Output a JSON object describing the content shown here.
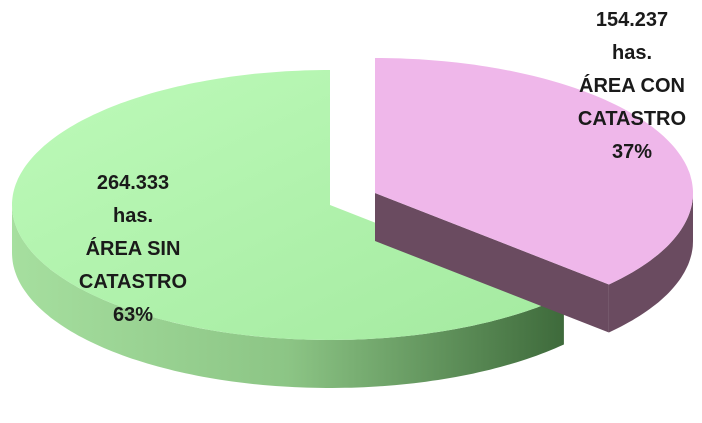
{
  "chart_data": {
    "type": "pie3d",
    "categories": [
      "ÁREA CON CATASTRO",
      "ÁREA SIN CATASTRO"
    ],
    "values": [
      154237,
      264333
    ],
    "value_labels": [
      "154.237",
      "264.333"
    ],
    "unit": "has.",
    "percentages": [
      37,
      63
    ],
    "percentage_labels": [
      "37%",
      "63%"
    ],
    "colors": [
      "#efb7ea",
      "#b4f6b2"
    ],
    "side_colors": [
      "#6a4b60",
      "#4a7a48"
    ],
    "exploded": [
      true,
      false
    ]
  }
}
